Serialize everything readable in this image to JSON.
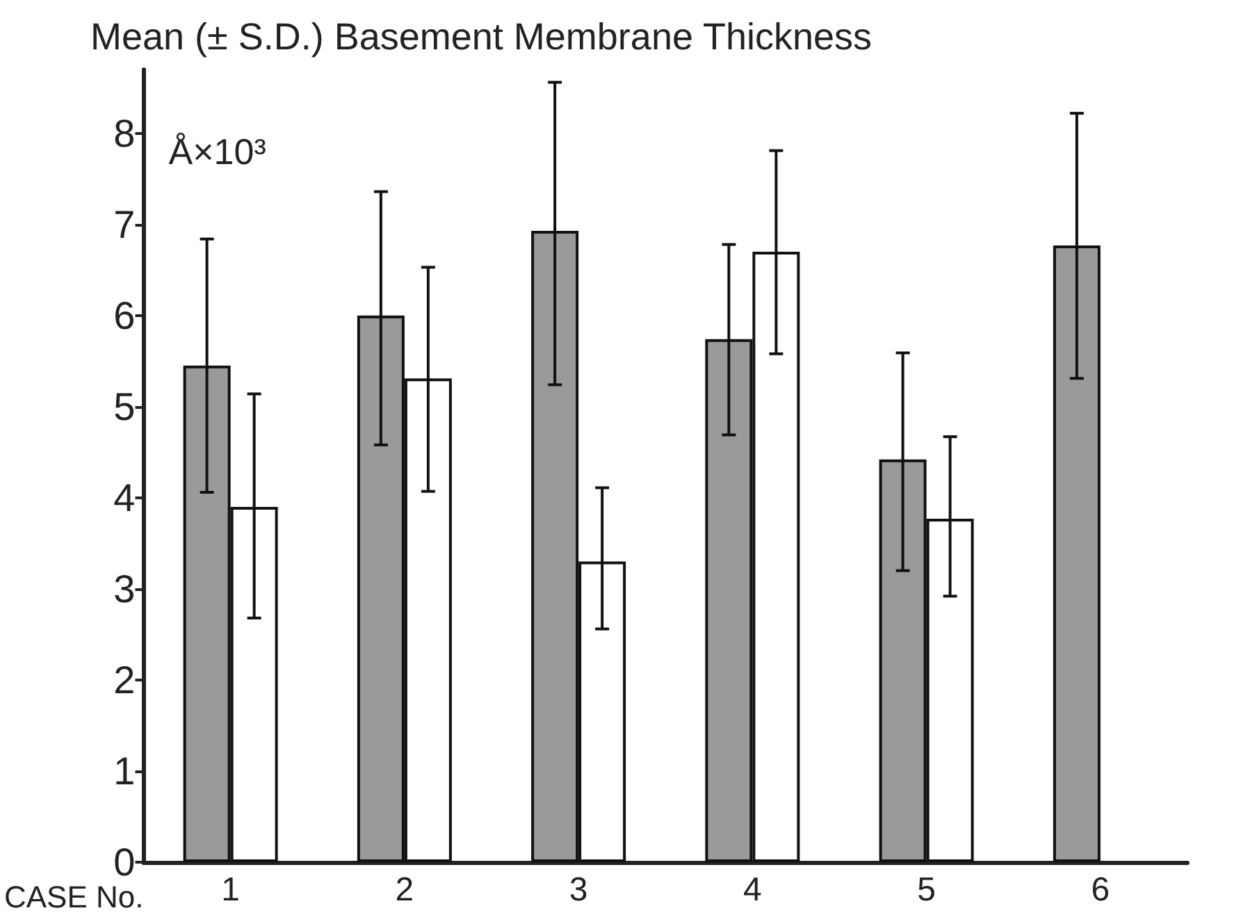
{
  "chart_data": {
    "type": "bar",
    "title": "Mean (± S.D.) Basement Membrane Thickness",
    "xlabel": "CASE No.",
    "ylabel": "Å×10³",
    "categories": [
      "1",
      "2",
      "3",
      "4",
      "5",
      "6"
    ],
    "series": [
      {
        "color": "#9a9a9a",
        "values": [
          5.45,
          6.0,
          6.93,
          5.74,
          4.42,
          6.77
        ],
        "errors": [
          [
            4.06,
            6.84
          ],
          [
            4.58,
            7.36
          ],
          [
            5.24,
            8.56
          ],
          [
            4.69,
            6.78
          ],
          [
            3.2,
            5.59
          ],
          [
            5.31,
            8.22
          ]
        ]
      },
      {
        "color": "#ffffff",
        "values": [
          3.9,
          5.31,
          3.3,
          6.7,
          3.77,
          null
        ],
        "errors": [
          [
            2.68,
            5.14
          ],
          [
            4.07,
            6.53
          ],
          [
            2.56,
            4.11
          ],
          [
            5.58,
            7.81
          ],
          [
            2.92,
            4.67
          ],
          null
        ]
      }
    ],
    "ylim": [
      0,
      8.7
    ],
    "yticks": [
      0,
      1,
      2,
      3,
      4,
      5,
      6,
      7,
      8
    ],
    "grid": false
  }
}
